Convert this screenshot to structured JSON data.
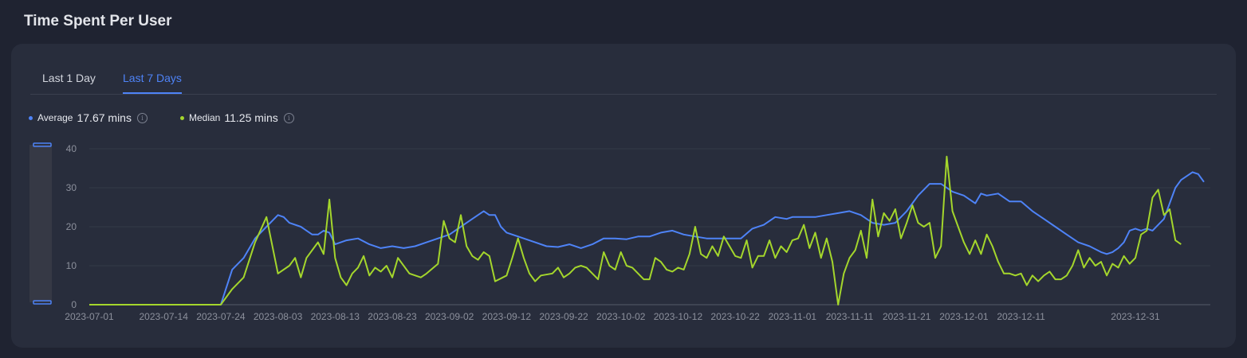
{
  "page": {
    "title": "Time Spent Per User"
  },
  "tabs": [
    {
      "label": "Last 1 Day",
      "active": false
    },
    {
      "label": "Last 7 Days",
      "active": true
    }
  ],
  "stats": {
    "average": {
      "label": "Average",
      "value": "17.67 mins",
      "color": "#4e83f7"
    },
    "median": {
      "label": "Median",
      "value": "11.25 mins",
      "color": "#a4d62c"
    }
  },
  "chart_data": {
    "type": "line",
    "x_start": "2023-07-01",
    "x_end": "2023-12-31",
    "ylim": [
      0,
      40
    ],
    "y_ticks": [
      "0",
      "10",
      "20",
      "30",
      "40"
    ],
    "x_tick_labels": [
      "2023-07-01",
      "2023-07-14",
      "2023-07-24",
      "2023-08-03",
      "2023-08-13",
      "2023-08-23",
      "2023-09-02",
      "2023-09-12",
      "2023-09-22",
      "2023-10-02",
      "2023-10-12",
      "2023-10-22",
      "2023-11-01",
      "2023-11-11",
      "2023-11-21",
      "2023-12-01",
      "2023-12-11",
      "2023-12-31"
    ],
    "grid": true,
    "series": [
      {
        "name": "Average",
        "color": "#4e83f7",
        "points": [
          [
            "2023-07-01",
            0
          ],
          [
            "2023-07-24",
            0
          ],
          [
            "2023-07-26",
            9
          ],
          [
            "2023-07-28",
            12
          ],
          [
            "2023-07-30",
            17
          ],
          [
            "2023-08-01",
            20
          ],
          [
            "2023-08-03",
            23
          ],
          [
            "2023-08-04",
            22.5
          ],
          [
            "2023-08-05",
            21
          ],
          [
            "2023-08-07",
            20
          ],
          [
            "2023-08-09",
            18
          ],
          [
            "2023-08-10",
            18
          ],
          [
            "2023-08-11",
            19
          ],
          [
            "2023-08-12",
            18.5
          ],
          [
            "2023-08-13",
            15.5
          ],
          [
            "2023-08-15",
            16.5
          ],
          [
            "2023-08-17",
            17
          ],
          [
            "2023-08-19",
            15.5
          ],
          [
            "2023-08-21",
            14.5
          ],
          [
            "2023-08-23",
            15
          ],
          [
            "2023-08-25",
            14.5
          ],
          [
            "2023-08-27",
            15
          ],
          [
            "2023-08-29",
            16
          ],
          [
            "2023-08-31",
            17
          ],
          [
            "2023-09-02",
            18
          ],
          [
            "2023-09-04",
            20
          ],
          [
            "2023-09-06",
            22
          ],
          [
            "2023-09-08",
            24
          ],
          [
            "2023-09-09",
            23
          ],
          [
            "2023-09-10",
            23
          ],
          [
            "2023-09-11",
            20
          ],
          [
            "2023-09-12",
            18.5
          ],
          [
            "2023-09-13",
            18
          ],
          [
            "2023-09-15",
            17
          ],
          [
            "2023-09-17",
            16
          ],
          [
            "2023-09-19",
            15
          ],
          [
            "2023-09-21",
            14.8
          ],
          [
            "2023-09-23",
            15.5
          ],
          [
            "2023-09-25",
            14.5
          ],
          [
            "2023-09-27",
            15.5
          ],
          [
            "2023-09-29",
            17
          ],
          [
            "2023-10-01",
            17
          ],
          [
            "2023-10-03",
            16.8
          ],
          [
            "2023-10-05",
            17.5
          ],
          [
            "2023-10-07",
            17.5
          ],
          [
            "2023-10-09",
            18.5
          ],
          [
            "2023-10-11",
            19
          ],
          [
            "2023-10-13",
            18
          ],
          [
            "2023-10-15",
            17.5
          ],
          [
            "2023-10-17",
            17
          ],
          [
            "2023-10-19",
            17
          ],
          [
            "2023-10-21",
            17
          ],
          [
            "2023-10-23",
            17
          ],
          [
            "2023-10-25",
            19.5
          ],
          [
            "2023-10-27",
            20.5
          ],
          [
            "2023-10-29",
            22.5
          ],
          [
            "2023-10-31",
            22
          ],
          [
            "2023-11-01",
            22.5
          ],
          [
            "2023-11-03",
            22.5
          ],
          [
            "2023-11-05",
            22.5
          ],
          [
            "2023-11-07",
            23
          ],
          [
            "2023-11-09",
            23.5
          ],
          [
            "2023-11-11",
            24
          ],
          [
            "2023-11-13",
            23
          ],
          [
            "2023-11-15",
            21
          ],
          [
            "2023-11-17",
            20.5
          ],
          [
            "2023-11-19",
            21
          ],
          [
            "2023-11-21",
            24
          ],
          [
            "2023-11-23",
            28
          ],
          [
            "2023-11-25",
            31
          ],
          [
            "2023-11-27",
            31
          ],
          [
            "2023-11-29",
            29
          ],
          [
            "2023-12-01",
            28
          ],
          [
            "2023-12-03",
            26
          ],
          [
            "2023-12-04",
            28.5
          ],
          [
            "2023-12-05",
            28
          ],
          [
            "2023-12-07",
            28.5
          ],
          [
            "2023-12-09",
            26.5
          ],
          [
            "2023-12-11",
            26.5
          ],
          [
            "2023-12-13",
            24
          ],
          [
            "2023-12-15",
            22
          ],
          [
            "2023-12-17",
            20
          ],
          [
            "2023-12-19",
            18
          ],
          [
            "2023-12-21",
            16
          ],
          [
            "2023-12-23",
            15
          ],
          [
            "2023-12-25",
            13.5
          ],
          [
            "2023-12-26",
            13
          ],
          [
            "2023-12-27",
            13.5
          ],
          [
            "2023-12-28",
            14.5
          ],
          [
            "2023-12-29",
            16
          ],
          [
            "2023-12-30",
            19
          ],
          [
            "2023-12-31",
            19.5
          ],
          [
            "2024-01-01",
            19
          ],
          [
            "2024-01-02",
            19.5
          ],
          [
            "2024-01-03",
            19
          ],
          [
            "2024-01-05",
            22
          ],
          [
            "2024-01-06",
            26
          ],
          [
            "2024-01-07",
            30
          ],
          [
            "2024-01-08",
            32
          ],
          [
            "2024-01-09",
            33
          ],
          [
            "2024-01-10",
            34
          ],
          [
            "2024-01-11",
            33.5
          ],
          [
            "2024-01-12",
            31.5
          ]
        ]
      },
      {
        "name": "Median",
        "color": "#a4d62c",
        "points": [
          [
            "2023-07-01",
            0
          ],
          [
            "2023-07-24",
            0
          ],
          [
            "2023-07-26",
            4
          ],
          [
            "2023-07-28",
            7
          ],
          [
            "2023-07-30",
            16
          ],
          [
            "2023-08-01",
            22.5
          ],
          [
            "2023-08-03",
            8
          ],
          [
            "2023-08-05",
            10
          ],
          [
            "2023-08-06",
            12
          ],
          [
            "2023-08-07",
            7
          ],
          [
            "2023-08-08",
            12
          ],
          [
            "2023-08-10",
            16
          ],
          [
            "2023-08-11",
            13
          ],
          [
            "2023-08-12",
            27
          ],
          [
            "2023-08-13",
            12
          ],
          [
            "2023-08-14",
            7
          ],
          [
            "2023-08-15",
            5
          ],
          [
            "2023-08-16",
            8
          ],
          [
            "2023-08-17",
            9.5
          ],
          [
            "2023-08-18",
            12.5
          ],
          [
            "2023-08-19",
            7.5
          ],
          [
            "2023-08-20",
            9.5
          ],
          [
            "2023-08-21",
            8.5
          ],
          [
            "2023-08-22",
            10
          ],
          [
            "2023-08-23",
            7
          ],
          [
            "2023-08-24",
            12
          ],
          [
            "2023-08-26",
            8
          ],
          [
            "2023-08-28",
            7
          ],
          [
            "2023-08-29",
            8
          ],
          [
            "2023-08-31",
            10.5
          ],
          [
            "2023-09-01",
            21.5
          ],
          [
            "2023-09-02",
            17
          ],
          [
            "2023-09-03",
            16
          ],
          [
            "2023-09-04",
            23
          ],
          [
            "2023-09-05",
            15
          ],
          [
            "2023-09-06",
            12.5
          ],
          [
            "2023-09-07",
            11.5
          ],
          [
            "2023-09-08",
            13.5
          ],
          [
            "2023-09-09",
            12.5
          ],
          [
            "2023-09-10",
            6
          ],
          [
            "2023-09-12",
            7.5
          ],
          [
            "2023-09-13",
            12
          ],
          [
            "2023-09-14",
            17
          ],
          [
            "2023-09-15",
            12
          ],
          [
            "2023-09-16",
            8
          ],
          [
            "2023-09-17",
            6
          ],
          [
            "2023-09-18",
            7.5
          ],
          [
            "2023-09-20",
            8
          ],
          [
            "2023-09-21",
            9.5
          ],
          [
            "2023-09-22",
            7
          ],
          [
            "2023-09-23",
            8
          ],
          [
            "2023-09-24",
            9.5
          ],
          [
            "2023-09-25",
            10
          ],
          [
            "2023-09-26",
            9.5
          ],
          [
            "2023-09-28",
            6.5
          ],
          [
            "2023-09-29",
            13.5
          ],
          [
            "2023-09-30",
            10
          ],
          [
            "2023-10-01",
            9
          ],
          [
            "2023-10-02",
            13.5
          ],
          [
            "2023-10-03",
            10
          ],
          [
            "2023-10-04",
            9.5
          ],
          [
            "2023-10-06",
            6.5
          ],
          [
            "2023-10-07",
            6.5
          ],
          [
            "2023-10-08",
            12
          ],
          [
            "2023-10-09",
            11
          ],
          [
            "2023-10-10",
            9
          ],
          [
            "2023-10-11",
            8.5
          ],
          [
            "2023-10-12",
            9.5
          ],
          [
            "2023-10-13",
            9
          ],
          [
            "2023-10-14",
            13
          ],
          [
            "2023-10-15",
            20
          ],
          [
            "2023-10-16",
            13
          ],
          [
            "2023-10-17",
            12
          ],
          [
            "2023-10-18",
            15
          ],
          [
            "2023-10-19",
            12.5
          ],
          [
            "2023-10-20",
            17.5
          ],
          [
            "2023-10-21",
            15
          ],
          [
            "2023-10-22",
            12.5
          ],
          [
            "2023-10-23",
            12
          ],
          [
            "2023-10-24",
            16.5
          ],
          [
            "2023-10-25",
            9.5
          ],
          [
            "2023-10-26",
            12.5
          ],
          [
            "2023-10-27",
            12.5
          ],
          [
            "2023-10-28",
            16.5
          ],
          [
            "2023-10-29",
            12
          ],
          [
            "2023-10-30",
            15
          ],
          [
            "2023-10-31",
            13.5
          ],
          [
            "2023-11-01",
            16.5
          ],
          [
            "2023-11-02",
            17
          ],
          [
            "2023-11-03",
            20.5
          ],
          [
            "2023-11-04",
            14.5
          ],
          [
            "2023-11-05",
            18.5
          ],
          [
            "2023-11-06",
            12
          ],
          [
            "2023-11-07",
            17
          ],
          [
            "2023-11-08",
            11
          ],
          [
            "2023-11-09",
            0
          ],
          [
            "2023-11-10",
            8
          ],
          [
            "2023-11-11",
            12
          ],
          [
            "2023-11-12",
            14
          ],
          [
            "2023-11-13",
            19
          ],
          [
            "2023-11-14",
            12
          ],
          [
            "2023-11-15",
            27
          ],
          [
            "2023-11-16",
            17.5
          ],
          [
            "2023-11-17",
            23.5
          ],
          [
            "2023-11-18",
            21.5
          ],
          [
            "2023-11-19",
            24.5
          ],
          [
            "2023-11-20",
            17
          ],
          [
            "2023-11-21",
            21
          ],
          [
            "2023-11-22",
            25.5
          ],
          [
            "2023-11-23",
            21
          ],
          [
            "2023-11-24",
            20
          ],
          [
            "2023-11-25",
            21
          ],
          [
            "2023-11-26",
            12
          ],
          [
            "2023-11-27",
            15
          ],
          [
            "2023-11-28",
            38
          ],
          [
            "2023-11-29",
            24
          ],
          [
            "2023-11-30",
            20
          ],
          [
            "2023-12-01",
            16
          ],
          [
            "2023-12-02",
            13
          ],
          [
            "2023-12-03",
            16.5
          ],
          [
            "2023-12-04",
            13
          ],
          [
            "2023-12-05",
            18
          ],
          [
            "2023-12-06",
            15
          ],
          [
            "2023-12-07",
            11
          ],
          [
            "2023-12-08",
            8
          ],
          [
            "2023-12-09",
            8
          ],
          [
            "2023-12-10",
            7.5
          ],
          [
            "2023-12-11",
            8
          ],
          [
            "2023-12-12",
            5
          ],
          [
            "2023-12-13",
            7.5
          ],
          [
            "2023-12-14",
            6
          ],
          [
            "2023-12-15",
            7.5
          ],
          [
            "2023-12-16",
            8.5
          ],
          [
            "2023-12-17",
            6.5
          ],
          [
            "2023-12-18",
            6.5
          ],
          [
            "2023-12-19",
            7.5
          ],
          [
            "2023-12-20",
            10
          ],
          [
            "2023-12-21",
            14
          ],
          [
            "2023-12-22",
            9.5
          ],
          [
            "2023-12-23",
            12
          ],
          [
            "2023-12-24",
            10
          ],
          [
            "2023-12-25",
            11
          ],
          [
            "2023-12-26",
            7.5
          ],
          [
            "2023-12-27",
            10.5
          ],
          [
            "2023-12-28",
            9.5
          ],
          [
            "2023-12-29",
            12.5
          ],
          [
            "2023-12-30",
            10.5
          ],
          [
            "2023-12-31",
            12
          ],
          [
            "2024-01-01",
            18
          ],
          [
            "2024-01-02",
            19
          ],
          [
            "2024-01-03",
            27.5
          ],
          [
            "2024-01-04",
            29.5
          ],
          [
            "2024-01-05",
            23
          ],
          [
            "2024-01-06",
            24.5
          ],
          [
            "2024-01-07",
            16.5
          ],
          [
            "2024-01-08",
            15.5
          ]
        ]
      }
    ]
  }
}
